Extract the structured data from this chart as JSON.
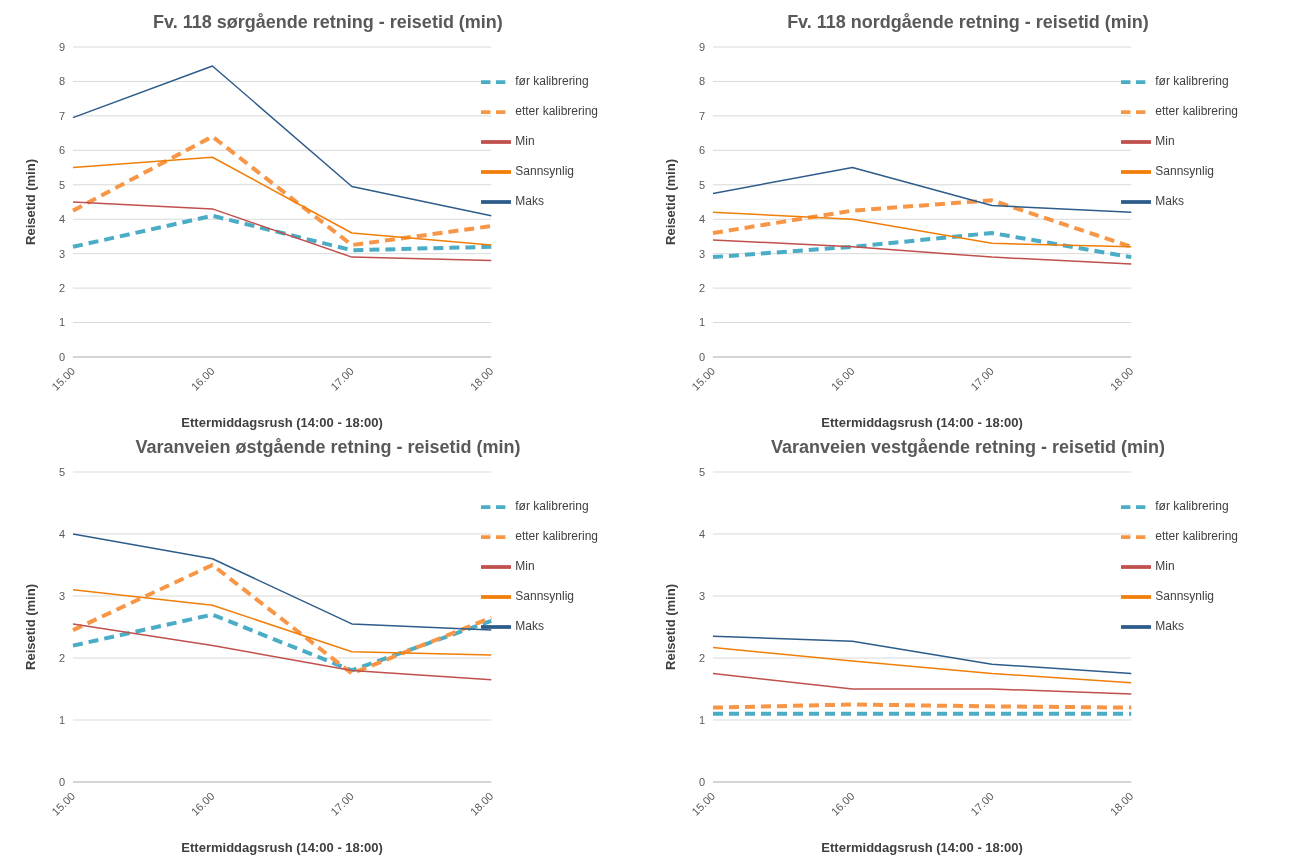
{
  "chart_data": [
    {
      "type": "line",
      "title": "Fv. 118 sørgående retning - reisetid (min)",
      "xlabel": "Ettermiddagsrush (14:00 - 18:00)",
      "ylabel": "Reisetid (min)",
      "categories": [
        "15.00",
        "16.00",
        "17.00",
        "18.00"
      ],
      "ylim": [
        0,
        9
      ],
      "yticks": [
        0,
        1,
        2,
        3,
        4,
        5,
        6,
        7,
        8,
        9
      ],
      "grid": "y",
      "legend": "top right",
      "series": [
        {
          "name": "før kalibrering",
          "color": "#4bacc6",
          "line_style": "dashed",
          "values": [
            3.2,
            4.1,
            3.1,
            3.2
          ]
        },
        {
          "name": "etter kalibrering",
          "color": "#f79646",
          "line_style": "dashed",
          "values": [
            4.25,
            6.4,
            3.25,
            3.8
          ]
        },
        {
          "name": "Min",
          "color": "#c0504d",
          "line_style": "solid",
          "values": [
            4.5,
            4.3,
            2.9,
            2.8
          ]
        },
        {
          "name": "Sannsynlig",
          "color": "#f07f09",
          "line_style": "solid",
          "values": [
            5.5,
            5.8,
            3.6,
            3.25
          ]
        },
        {
          "name": "Maks",
          "color": "#2e5c8a",
          "line_style": "solid",
          "values": [
            6.95,
            8.45,
            4.95,
            4.1
          ]
        }
      ]
    },
    {
      "type": "line",
      "title": "Fv. 118 nordgående  retning - reisetid (min)",
      "xlabel": "Ettermiddagsrush (14:00 - 18:00)",
      "ylabel": "Reisetid (min)",
      "categories": [
        "15.00",
        "16.00",
        "17.00",
        "18.00"
      ],
      "ylim": [
        0,
        9
      ],
      "yticks": [
        0,
        1,
        2,
        3,
        4,
        5,
        6,
        7,
        8,
        9
      ],
      "grid": "y",
      "legend": "top right",
      "series": [
        {
          "name": "før kalibrering",
          "color": "#4bacc6",
          "line_style": "dashed",
          "values": [
            2.9,
            3.2,
            3.6,
            2.9
          ]
        },
        {
          "name": "etter kalibrering",
          "color": "#f79646",
          "line_style": "dashed",
          "values": [
            3.6,
            4.25,
            4.55,
            3.2
          ]
        },
        {
          "name": "Min",
          "color": "#c0504d",
          "line_style": "solid",
          "values": [
            3.4,
            3.2,
            2.9,
            2.7
          ]
        },
        {
          "name": "Sannsynlig",
          "color": "#f07f09",
          "line_style": "solid",
          "values": [
            4.2,
            4.0,
            3.3,
            3.2
          ]
        },
        {
          "name": "Maks",
          "color": "#2e5c8a",
          "line_style": "solid",
          "values": [
            4.75,
            5.5,
            4.4,
            4.2
          ]
        }
      ]
    },
    {
      "type": "line",
      "title": "Varanveien østgående retning - reisetid (min)",
      "xlabel": "Ettermiddagsrush (14:00 - 18:00)",
      "ylabel": "Reisetid (min)",
      "categories": [
        "15.00",
        "16.00",
        "17.00",
        "18.00"
      ],
      "ylim": [
        0,
        5
      ],
      "yticks": [
        0,
        1,
        2,
        3,
        4,
        5
      ],
      "grid": "y",
      "legend": "top right",
      "series": [
        {
          "name": "før kalibrering",
          "color": "#4bacc6",
          "line_style": "dashed",
          "values": [
            2.2,
            2.7,
            1.8,
            2.6
          ]
        },
        {
          "name": "etter kalibrering",
          "color": "#f79646",
          "line_style": "dashed",
          "values": [
            2.45,
            3.5,
            1.75,
            2.65
          ]
        },
        {
          "name": "Min",
          "color": "#c0504d",
          "line_style": "solid",
          "values": [
            2.55,
            2.2,
            1.8,
            1.65
          ]
        },
        {
          "name": "Sannsynlig",
          "color": "#f07f09",
          "line_style": "solid",
          "values": [
            3.1,
            2.85,
            2.1,
            2.05
          ]
        },
        {
          "name": "Maks",
          "color": "#2e5c8a",
          "line_style": "solid",
          "values": [
            4.0,
            3.6,
            2.55,
            2.45
          ]
        }
      ]
    },
    {
      "type": "line",
      "title": "Varanveien vestgående retning - reisetid (min)",
      "xlabel": "Ettermiddagsrush (14:00 - 18:00)",
      "ylabel": "Reisetid (min)",
      "categories": [
        "15.00",
        "16.00",
        "17.00",
        "18.00"
      ],
      "ylim": [
        0,
        5
      ],
      "yticks": [
        0,
        1,
        2,
        3,
        4,
        5
      ],
      "grid": "y",
      "legend": "top right",
      "series": [
        {
          "name": "før kalibrering",
          "color": "#4bacc6",
          "line_style": "dashed",
          "values": [
            1.1,
            1.1,
            1.1,
            1.1
          ]
        },
        {
          "name": "etter kalibrering",
          "color": "#f79646",
          "line_style": "dashed",
          "values": [
            1.2,
            1.25,
            1.22,
            1.2
          ]
        },
        {
          "name": "Min",
          "color": "#c0504d",
          "line_style": "solid",
          "values": [
            1.75,
            1.5,
            1.5,
            1.42
          ]
        },
        {
          "name": "Sannsynlig",
          "color": "#f07f09",
          "line_style": "solid",
          "values": [
            2.17,
            1.95,
            1.75,
            1.6
          ]
        },
        {
          "name": "Maks",
          "color": "#2e5c8a",
          "line_style": "solid",
          "values": [
            2.35,
            2.27,
            1.9,
            1.75
          ]
        }
      ]
    }
  ]
}
